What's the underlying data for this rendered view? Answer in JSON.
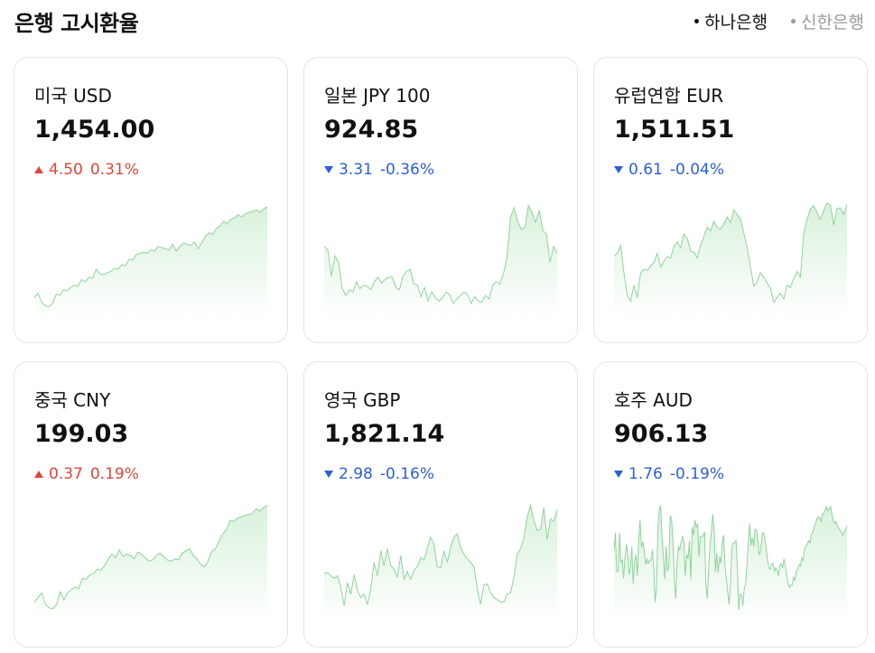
{
  "header": {
    "title": "은행 고시환율",
    "banks": [
      {
        "label": "하나은행",
        "active": true
      },
      {
        "label": "신한은행",
        "active": false
      }
    ]
  },
  "colors": {
    "up": "#e0453a",
    "down": "#2b5fd8",
    "spark_line": "#8fd49b",
    "spark_fill": "#d9f1dc"
  },
  "cards": [
    {
      "name": "미국 USD",
      "price": "1,454.00",
      "direction": "up",
      "change": "4.50",
      "percent": "0.31%",
      "spark": [
        13,
        17,
        9,
        6,
        5,
        8,
        16,
        15,
        20,
        19,
        22,
        24,
        23,
        29,
        27,
        31,
        30,
        38,
        34,
        33,
        35,
        36,
        39,
        38,
        42,
        41,
        47,
        46,
        51,
        52,
        53,
        52,
        55,
        54,
        58,
        57,
        56,
        55,
        60,
        54,
        58,
        61,
        60,
        59,
        62,
        56,
        61,
        67,
        70,
        69,
        74,
        76,
        80,
        78,
        82,
        83,
        86,
        84,
        87,
        88,
        89,
        90,
        88,
        91,
        93
      ]
    },
    {
      "name": "일본 JPY 100",
      "price": "924.85",
      "direction": "down",
      "change": "3.31",
      "percent": "-0.36%",
      "spark": [
        58,
        55,
        32,
        50,
        44,
        22,
        15,
        20,
        18,
        27,
        21,
        24,
        23,
        20,
        27,
        31,
        26,
        29,
        31,
        31,
        22,
        20,
        32,
        36,
        38,
        25,
        24,
        14,
        22,
        10,
        18,
        13,
        10,
        13,
        18,
        16,
        8,
        12,
        15,
        18,
        16,
        8,
        14,
        10,
        9,
        15,
        12,
        24,
        27,
        25,
        34,
        48,
        84,
        92,
        80,
        73,
        75,
        94,
        88,
        79,
        90,
        72,
        69,
        44,
        58,
        52
      ]
    },
    {
      "name": "유럽연합 EUR",
      "price": "1,511.51",
      "direction": "down",
      "change": "0.61",
      "percent": "-0.04%",
      "spark": [
        50,
        52,
        59,
        34,
        15,
        10,
        24,
        13,
        35,
        38,
        37,
        41,
        44,
        52,
        40,
        45,
        49,
        48,
        58,
        62,
        57,
        69,
        65,
        54,
        53,
        48,
        59,
        67,
        75,
        72,
        80,
        75,
        73,
        78,
        84,
        79,
        90,
        86,
        82,
        70,
        57,
        40,
        23,
        27,
        35,
        31,
        26,
        21,
        9,
        13,
        17,
        12,
        24,
        22,
        30,
        36,
        31,
        70,
        82,
        91,
        94,
        88,
        82,
        90,
        96,
        94,
        77,
        91,
        92,
        86,
        95
      ]
    },
    {
      "name": "중국 CNY",
      "price": "199.03",
      "direction": "up",
      "change": "0.37",
      "percent": "0.19%",
      "spark": [
        13,
        17,
        21,
        11,
        8,
        7,
        11,
        22,
        15,
        21,
        24,
        26,
        25,
        34,
        33,
        37,
        38,
        42,
        41,
        45,
        51,
        55,
        52,
        59,
        53,
        55,
        54,
        51,
        57,
        55,
        52,
        49,
        50,
        54,
        56,
        53,
        50,
        49,
        51,
        50,
        56,
        58,
        60,
        54,
        51,
        46,
        44,
        49,
        58,
        60,
        67,
        73,
        77,
        85,
        84,
        87,
        88,
        89,
        90,
        91,
        95,
        93,
        96,
        98
      ]
    },
    {
      "name": "영국 GBP",
      "price": "1,821.14",
      "direction": "down",
      "change": "2.98",
      "percent": "-0.16%",
      "spark": [
        38,
        39,
        36,
        34,
        36,
        26,
        10,
        30,
        20,
        37,
        23,
        17,
        20,
        11,
        25,
        48,
        36,
        58,
        45,
        60,
        45,
        42,
        35,
        54,
        33,
        40,
        33,
        41,
        44,
        52,
        50,
        61,
        70,
        64,
        44,
        43,
        58,
        48,
        62,
        70,
        73,
        61,
        55,
        51,
        48,
        44,
        25,
        11,
        28,
        29,
        21,
        17,
        15,
        13,
        13,
        20,
        21,
        35,
        55,
        60,
        69,
        88,
        98,
        85,
        76,
        77,
        96,
        68,
        86,
        84,
        94
      ]
    },
    {
      "name": "호주 AUD",
      "price": "906.13",
      "direction": "down",
      "change": "1.76",
      "percent": "-0.19%",
      "spark": [
        59,
        74,
        40,
        40,
        74,
        48,
        50,
        34,
        52,
        64,
        55,
        37,
        43,
        62,
        29,
        48,
        55,
        36,
        67,
        85,
        61,
        66,
        59,
        46,
        51,
        47,
        50,
        50,
        59,
        43,
        13,
        25,
        78,
        94,
        98,
        71,
        54,
        33,
        62,
        40,
        45,
        89,
        86,
        67,
        33,
        16,
        45,
        62,
        59,
        66,
        71,
        66,
        36,
        55,
        51,
        67,
        33,
        79,
        72,
        85,
        79,
        82,
        53,
        70,
        71,
        71,
        75,
        29,
        16,
        42,
        62,
        75,
        90,
        78,
        39,
        56,
        39,
        53,
        47,
        66,
        72,
        44,
        34,
        21,
        11,
        30,
        61,
        65,
        65,
        67,
        44,
        6,
        20,
        19,
        10,
        25,
        29,
        45,
        66,
        82,
        63,
        70,
        62,
        77,
        76,
        66,
        54,
        58,
        72,
        74,
        69,
        60,
        50,
        43,
        42,
        46,
        47,
        40,
        43,
        41,
        36,
        45,
        47,
        43,
        51,
        45,
        37,
        30,
        26,
        28,
        28,
        35,
        32,
        40,
        42,
        46,
        45,
        52,
        49,
        60,
        62,
        64,
        67,
        65,
        72,
        75,
        79,
        82,
        86,
        88,
        87,
        84,
        90,
        91,
        94,
        97,
        93,
        95,
        97,
        90,
        85,
        82,
        84,
        80,
        78,
        76,
        74,
        72,
        75,
        77,
        80
      ]
    }
  ]
}
